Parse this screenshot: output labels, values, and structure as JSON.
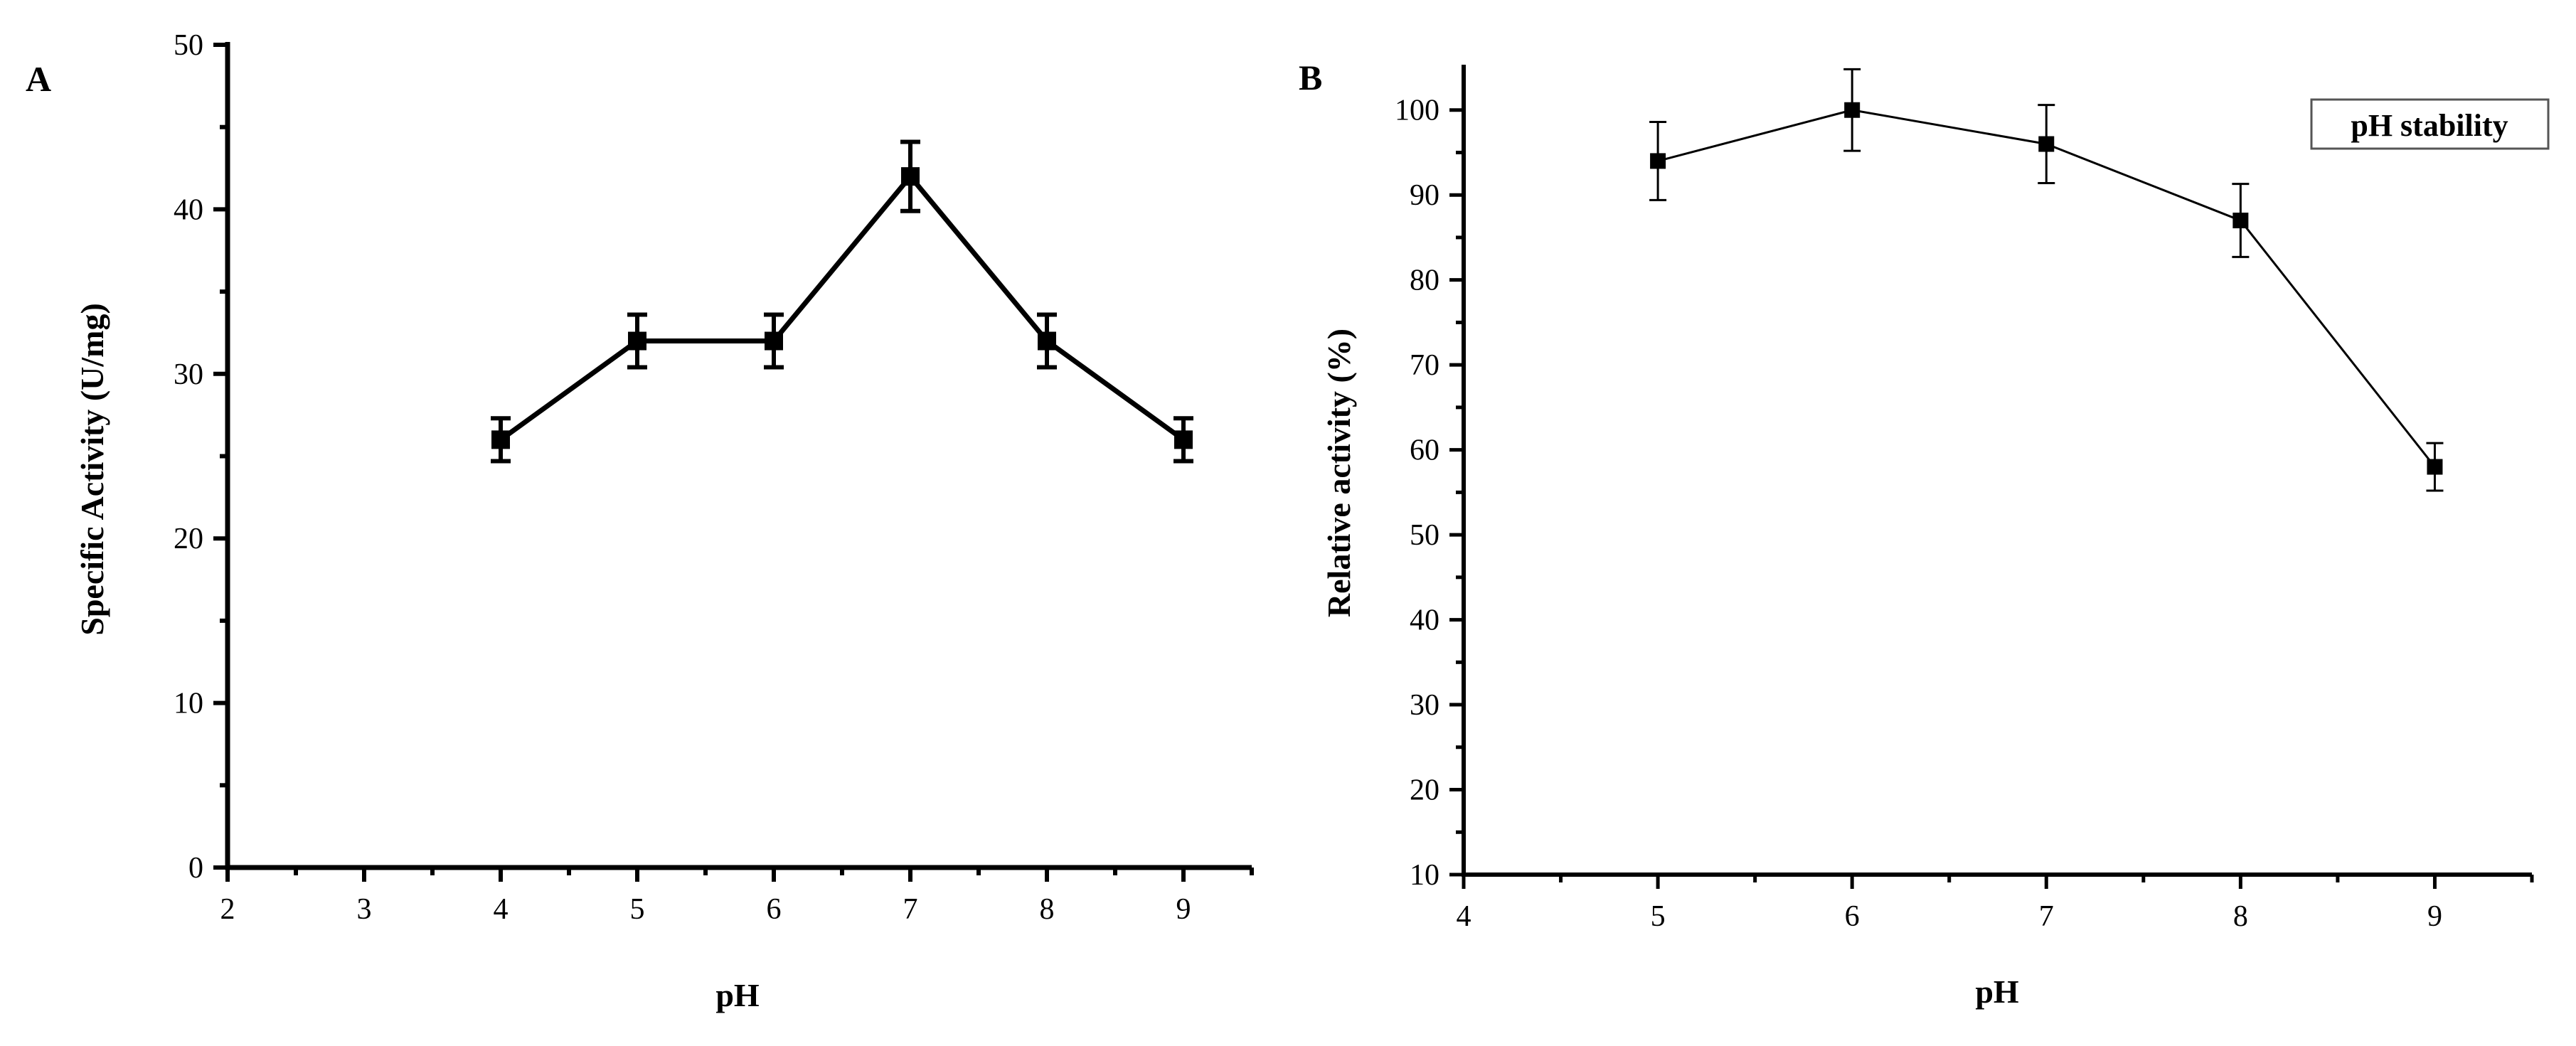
{
  "chart_data": [
    {
      "panel": "A",
      "type": "line",
      "xlabel": "pH",
      "ylabel": "Specific Activity (U/mg)",
      "xlim": [
        2,
        9.5
      ],
      "ylim": [
        0,
        50
      ],
      "x_ticks": [
        2,
        3,
        4,
        5,
        6,
        7,
        8,
        9
      ],
      "y_ticks": [
        0,
        10,
        20,
        30,
        40,
        50
      ],
      "grid": false,
      "series": [
        {
          "name": "Specific activity",
          "x": [
            4,
            5,
            6,
            7,
            8,
            9
          ],
          "y": [
            26,
            32,
            32,
            42,
            32,
            26
          ],
          "error": [
            1.3,
            1.6,
            1.6,
            2.1,
            1.6,
            1.3
          ]
        }
      ]
    },
    {
      "panel": "B",
      "type": "line",
      "xlabel": "pH",
      "ylabel": "Relative activity (%)",
      "xlim": [
        4,
        9.5
      ],
      "ylim": [
        10,
        105
      ],
      "x_ticks": [
        4,
        5,
        6,
        7,
        8,
        9
      ],
      "y_ticks": [
        10,
        20,
        30,
        40,
        50,
        60,
        70,
        80,
        90,
        100
      ],
      "grid": false,
      "legend": {
        "text": "pH stability",
        "position": "top-right"
      },
      "series": [
        {
          "name": "pH stability",
          "x": [
            5,
            6,
            7,
            8,
            9
          ],
          "y": [
            94,
            100,
            96,
            87,
            58
          ],
          "error": [
            4.6,
            4.8,
            4.6,
            4.3,
            2.8
          ]
        }
      ]
    }
  ]
}
